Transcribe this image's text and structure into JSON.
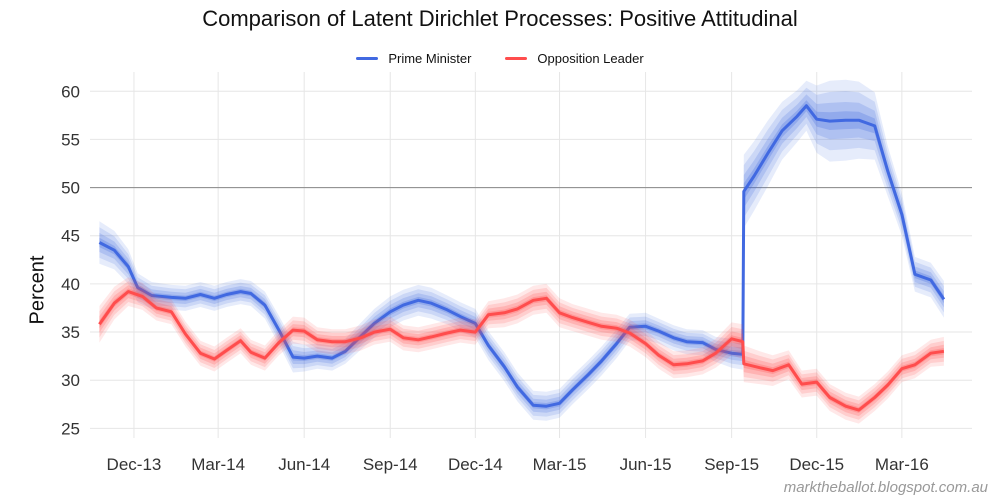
{
  "chart_data": {
    "type": "line",
    "title": "Comparison of Latent Dirichlet Processes: Positive Attitudinal",
    "ylabel": "Percent",
    "xlabel": "",
    "ylim": [
      24,
      62
    ],
    "xlim": [
      "2013-10-15",
      "2016-05-15"
    ],
    "yticks": [
      25,
      30,
      35,
      40,
      45,
      50,
      55,
      60
    ],
    "xticks": [
      {
        "date": "2013-12-01",
        "label": "Dec-13"
      },
      {
        "date": "2014-03-01",
        "label": "Mar-14"
      },
      {
        "date": "2014-06-01",
        "label": "Jun-14"
      },
      {
        "date": "2014-09-01",
        "label": "Sep-14"
      },
      {
        "date": "2014-12-01",
        "label": "Dec-14"
      },
      {
        "date": "2015-03-01",
        "label": "Mar-15"
      },
      {
        "date": "2015-06-01",
        "label": "Jun-15"
      },
      {
        "date": "2015-09-01",
        "label": "Sep-15"
      },
      {
        "date": "2015-12-01",
        "label": "Dec-15"
      },
      {
        "date": "2016-03-01",
        "label": "Mar-16"
      }
    ],
    "reference_line": 50,
    "grid": true,
    "legend_position": "top-center",
    "series": [
      {
        "name": "Prime Minister",
        "color": "#4169E1",
        "x": [
          "2013-10-25",
          "2013-11-10",
          "2013-11-25",
          "2013-12-05",
          "2013-12-20",
          "2014-01-10",
          "2014-01-25",
          "2014-02-10",
          "2014-02-25",
          "2014-03-10",
          "2014-03-25",
          "2014-04-05",
          "2014-04-20",
          "2014-05-05",
          "2014-05-20",
          "2014-06-01",
          "2014-06-15",
          "2014-07-01",
          "2014-07-15",
          "2014-08-01",
          "2014-08-15",
          "2014-09-01",
          "2014-09-15",
          "2014-10-01",
          "2014-10-15",
          "2014-11-01",
          "2014-11-15",
          "2014-12-01",
          "2014-12-15",
          "2015-01-01",
          "2015-01-15",
          "2015-02-01",
          "2015-02-15",
          "2015-03-01",
          "2015-03-15",
          "2015-04-01",
          "2015-04-15",
          "2015-05-01",
          "2015-05-15",
          "2015-06-01",
          "2015-06-15",
          "2015-07-01",
          "2015-07-15",
          "2015-08-01",
          "2015-08-15",
          "2015-09-01",
          "2015-09-13",
          "2015-09-14",
          "2015-09-25",
          "2015-10-10",
          "2015-10-25",
          "2015-11-10",
          "2015-11-20",
          "2015-12-01",
          "2015-12-15",
          "2016-01-01",
          "2016-01-15",
          "2016-02-01",
          "2016-02-15",
          "2016-03-01",
          "2016-03-15",
          "2016-04-01",
          "2016-04-15"
        ],
        "y": [
          44.3,
          43.5,
          41.8,
          39.6,
          38.8,
          38.6,
          38.5,
          38.9,
          38.5,
          38.9,
          39.2,
          39.0,
          37.8,
          35.2,
          32.4,
          32.3,
          32.5,
          32.3,
          33.0,
          34.6,
          35.9,
          37.1,
          37.8,
          38.3,
          38.0,
          37.3,
          36.6,
          35.9,
          33.6,
          31.4,
          29.3,
          27.4,
          27.3,
          27.6,
          29.0,
          30.6,
          32.0,
          33.8,
          35.5,
          35.6,
          35.1,
          34.4,
          34.0,
          33.9,
          33.2,
          32.8,
          32.7,
          49.6,
          51.2,
          53.6,
          55.9,
          57.4,
          58.5,
          57.1,
          56.9,
          57.0,
          57.0,
          56.4,
          51.7,
          47.2,
          41.0,
          40.4,
          38.4
        ],
        "band_halfwidth": [
          2.2,
          2.0,
          1.8,
          1.5,
          1.4,
          1.3,
          1.3,
          1.3,
          1.3,
          1.3,
          1.3,
          1.3,
          1.4,
          1.5,
          1.6,
          1.4,
          1.3,
          1.3,
          1.3,
          1.4,
          1.5,
          1.6,
          1.6,
          1.6,
          1.6,
          1.5,
          1.5,
          1.5,
          1.5,
          1.5,
          1.5,
          1.5,
          1.5,
          1.5,
          1.5,
          1.5,
          1.5,
          1.5,
          1.4,
          1.4,
          1.3,
          1.3,
          1.3,
          1.3,
          1.3,
          1.5,
          1.6,
          3.8,
          3.6,
          3.4,
          3.0,
          2.7,
          2.6,
          3.5,
          4.2,
          4.2,
          4.0,
          3.5,
          2.6,
          2.2,
          1.8,
          1.8,
          1.9
        ]
      },
      {
        "name": "Opposition Leader",
        "color": "#FF4D4D",
        "x": [
          "2013-10-25",
          "2013-11-10",
          "2013-11-25",
          "2013-12-10",
          "2013-12-25",
          "2014-01-10",
          "2014-01-25",
          "2014-02-10",
          "2014-02-25",
          "2014-03-10",
          "2014-03-25",
          "2014-04-05",
          "2014-04-20",
          "2014-05-05",
          "2014-05-20",
          "2014-06-01",
          "2014-06-15",
          "2014-07-01",
          "2014-07-15",
          "2014-08-01",
          "2014-08-15",
          "2014-09-01",
          "2014-09-15",
          "2014-10-01",
          "2014-10-15",
          "2014-11-01",
          "2014-11-15",
          "2014-12-01",
          "2014-12-15",
          "2015-01-01",
          "2015-01-15",
          "2015-02-01",
          "2015-02-15",
          "2015-03-01",
          "2015-03-15",
          "2015-04-01",
          "2015-04-15",
          "2015-05-01",
          "2015-05-15",
          "2015-06-01",
          "2015-06-15",
          "2015-07-01",
          "2015-07-15",
          "2015-08-01",
          "2015-08-15",
          "2015-09-01",
          "2015-09-13",
          "2015-09-14",
          "2015-10-01",
          "2015-10-15",
          "2015-11-01",
          "2015-11-15",
          "2015-12-01",
          "2015-12-15",
          "2016-01-01",
          "2016-01-15",
          "2016-02-01",
          "2016-02-15",
          "2016-03-01",
          "2016-03-15",
          "2016-04-01",
          "2016-04-15"
        ],
        "y": [
          35.8,
          38.0,
          39.2,
          38.7,
          37.5,
          37.1,
          34.8,
          32.8,
          32.2,
          33.1,
          34.1,
          32.9,
          32.3,
          33.9,
          35.2,
          35.1,
          34.2,
          34.0,
          34.0,
          34.4,
          35.0,
          35.3,
          34.4,
          34.2,
          34.5,
          34.9,
          35.2,
          35.0,
          36.8,
          37.0,
          37.4,
          38.3,
          38.5,
          37.0,
          36.5,
          36.0,
          35.6,
          35.4,
          34.9,
          33.8,
          32.6,
          31.6,
          31.7,
          32.0,
          32.8,
          34.3,
          34.0,
          31.7,
          31.3,
          31.0,
          31.6,
          29.6,
          29.8,
          28.2,
          27.3,
          26.9,
          28.2,
          29.5,
          31.2,
          31.6,
          32.8,
          33.0
        ],
        "band_halfwidth": [
          1.9,
          1.7,
          1.5,
          1.4,
          1.3,
          1.3,
          1.3,
          1.3,
          1.3,
          1.3,
          1.3,
          1.3,
          1.3,
          1.3,
          1.4,
          1.4,
          1.3,
          1.3,
          1.3,
          1.3,
          1.3,
          1.3,
          1.3,
          1.3,
          1.3,
          1.3,
          1.3,
          1.3,
          1.4,
          1.5,
          1.5,
          1.5,
          1.5,
          1.5,
          1.4,
          1.4,
          1.4,
          1.4,
          1.4,
          1.4,
          1.4,
          1.4,
          1.4,
          1.4,
          1.5,
          1.7,
          1.8,
          1.9,
          1.7,
          1.6,
          1.5,
          1.4,
          1.4,
          1.4,
          1.4,
          1.4,
          1.4,
          1.4,
          1.4,
          1.4,
          1.4,
          1.5
        ]
      }
    ]
  },
  "watermark": "marktheballot.blogspot.com.au"
}
